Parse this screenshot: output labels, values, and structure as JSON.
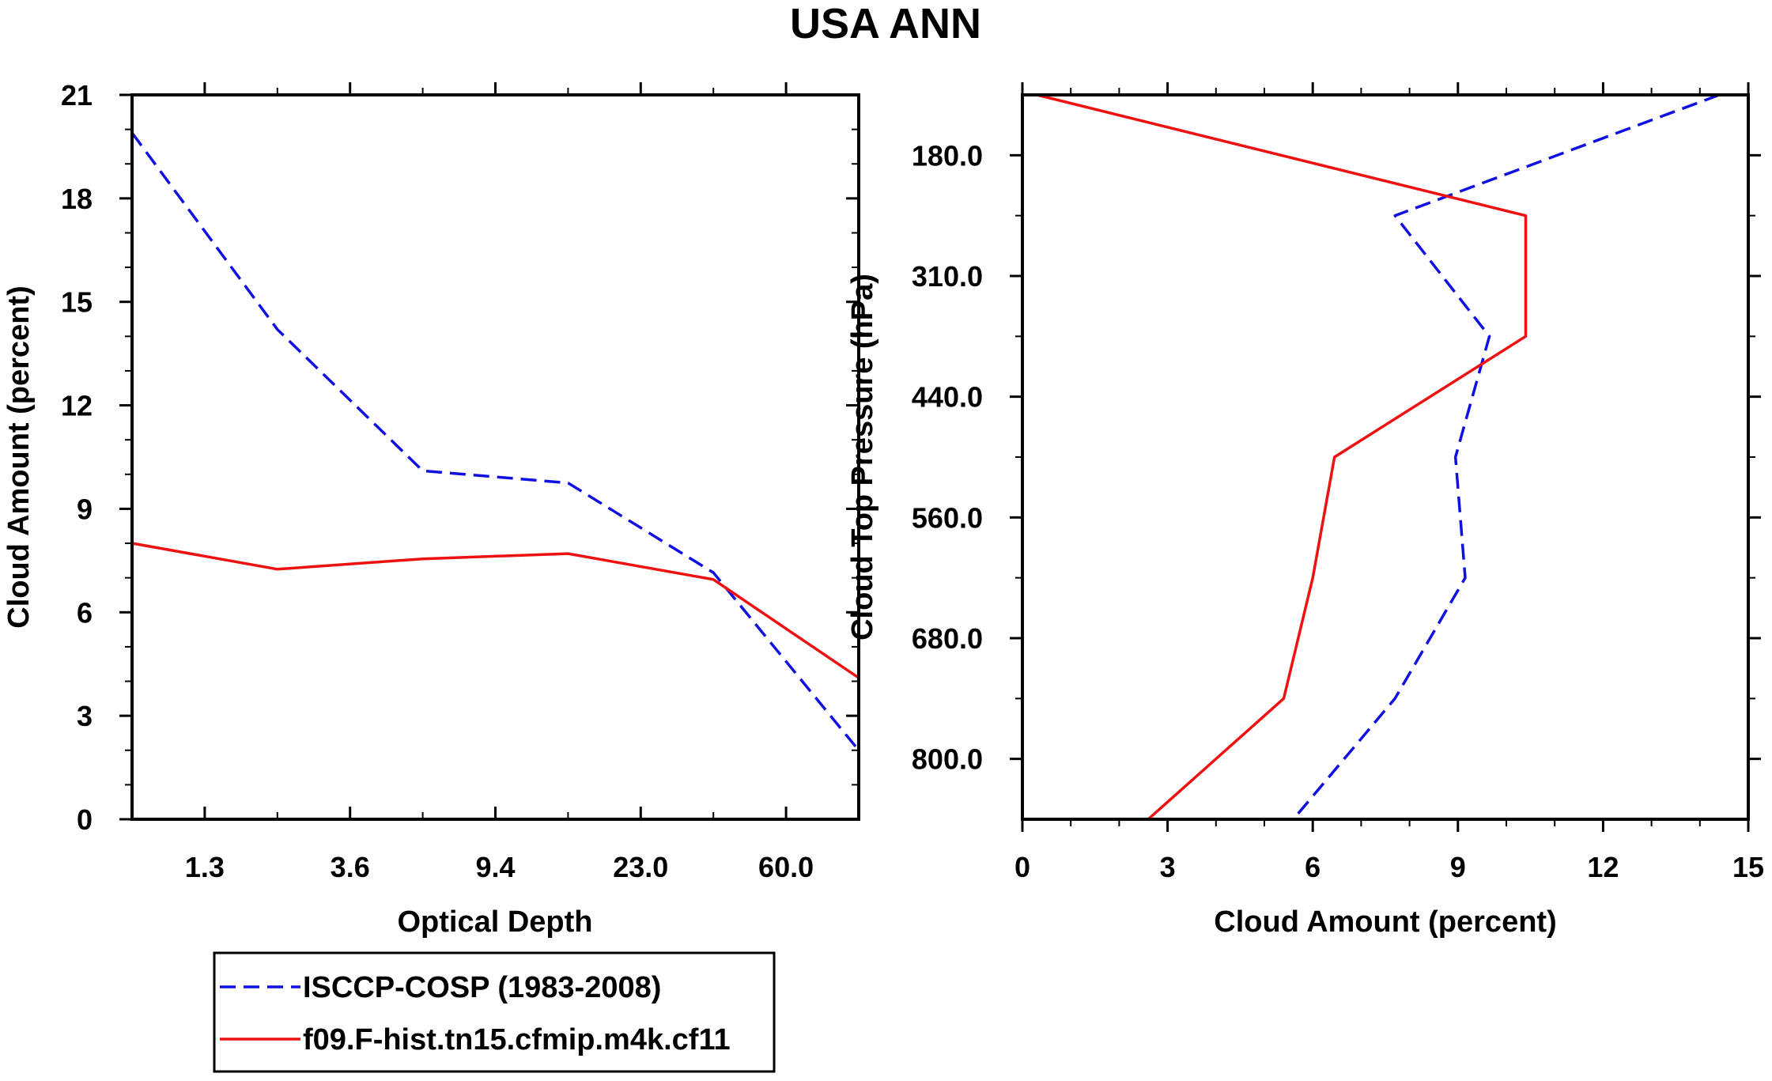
{
  "title": "USA ANN",
  "colors": {
    "obs": "#1010e0",
    "model": "#ee1111"
  },
  "legend": {
    "obs_label": "ISCCP-COSP (1983-2008)",
    "model_label": "f09.F-hist.tn15.cfmip.m4k.cf11"
  },
  "chart_data": [
    {
      "type": "line",
      "name": "optical-depth-panel",
      "xlabel": "Optical Depth",
      "ylabel": "Cloud Amount (percent)",
      "x_ticklabels": [
        "1.3",
        "3.6",
        "9.4",
        "23.0",
        "60.0"
      ],
      "x_tick_positions": [
        1,
        3,
        5,
        7,
        9
      ],
      "x_minor_positions": [
        2,
        4,
        6,
        8
      ],
      "xlim": [
        0,
        10
      ],
      "ylim": [
        0,
        21
      ],
      "y_ticks": [
        0,
        3,
        6,
        9,
        12,
        15,
        18,
        21
      ],
      "y_ticklabels": [
        "0",
        "3",
        "6",
        "9",
        "12",
        "15",
        "18",
        "21"
      ],
      "y_minor_step": 1,
      "series": [
        {
          "name": "ISCCP-COSP (1983-2008)",
          "style": "dashed",
          "x": [
            0,
            2,
            4,
            6,
            8,
            10
          ],
          "y": [
            19.9,
            14.2,
            10.1,
            9.75,
            7.15,
            2.0
          ]
        },
        {
          "name": "f09.F-hist.tn15.cfmip.m4k.cf11",
          "style": "solid",
          "x": [
            0,
            2,
            4,
            6,
            8,
            10
          ],
          "y": [
            8.0,
            7.25,
            7.55,
            7.7,
            6.95,
            4.1
          ]
        }
      ]
    },
    {
      "type": "line",
      "name": "cloud-top-pressure-panel",
      "xlabel": "Cloud Amount (percent)",
      "ylabel": "Cloud Top Pressure (hPa)",
      "xlim": [
        0,
        15
      ],
      "x_ticks": [
        0,
        3,
        6,
        9,
        12,
        15
      ],
      "x_ticklabels": [
        "0",
        "3",
        "6",
        "9",
        "12",
        "15"
      ],
      "x_minor_step": 1,
      "ylim": [
        0,
        6
      ],
      "y_tick_positions": [
        0.5,
        1.5,
        2.5,
        3.5,
        4.5,
        5.5
      ],
      "y_ticklabels": [
        "180.0",
        "310.0",
        "440.0",
        "560.0",
        "680.0",
        "800.0"
      ],
      "y_minor_positions": [
        1,
        2,
        3,
        4,
        5
      ],
      "series": [
        {
          "name": "ISCCP-COSP (1983-2008)",
          "style": "dashed",
          "x": [
            14.4,
            7.7,
            9.65,
            8.95,
            9.15,
            7.7,
            5.6
          ],
          "y": [
            0,
            1,
            2,
            3,
            4,
            5,
            6
          ]
        },
        {
          "name": "f09.F-hist.tn15.cfmip.m4k.cf11",
          "style": "solid",
          "x": [
            0.3,
            10.4,
            10.4,
            6.45,
            6.0,
            5.4,
            2.6
          ],
          "y": [
            0,
            1,
            2,
            3,
            4,
            5,
            6
          ]
        }
      ]
    }
  ]
}
